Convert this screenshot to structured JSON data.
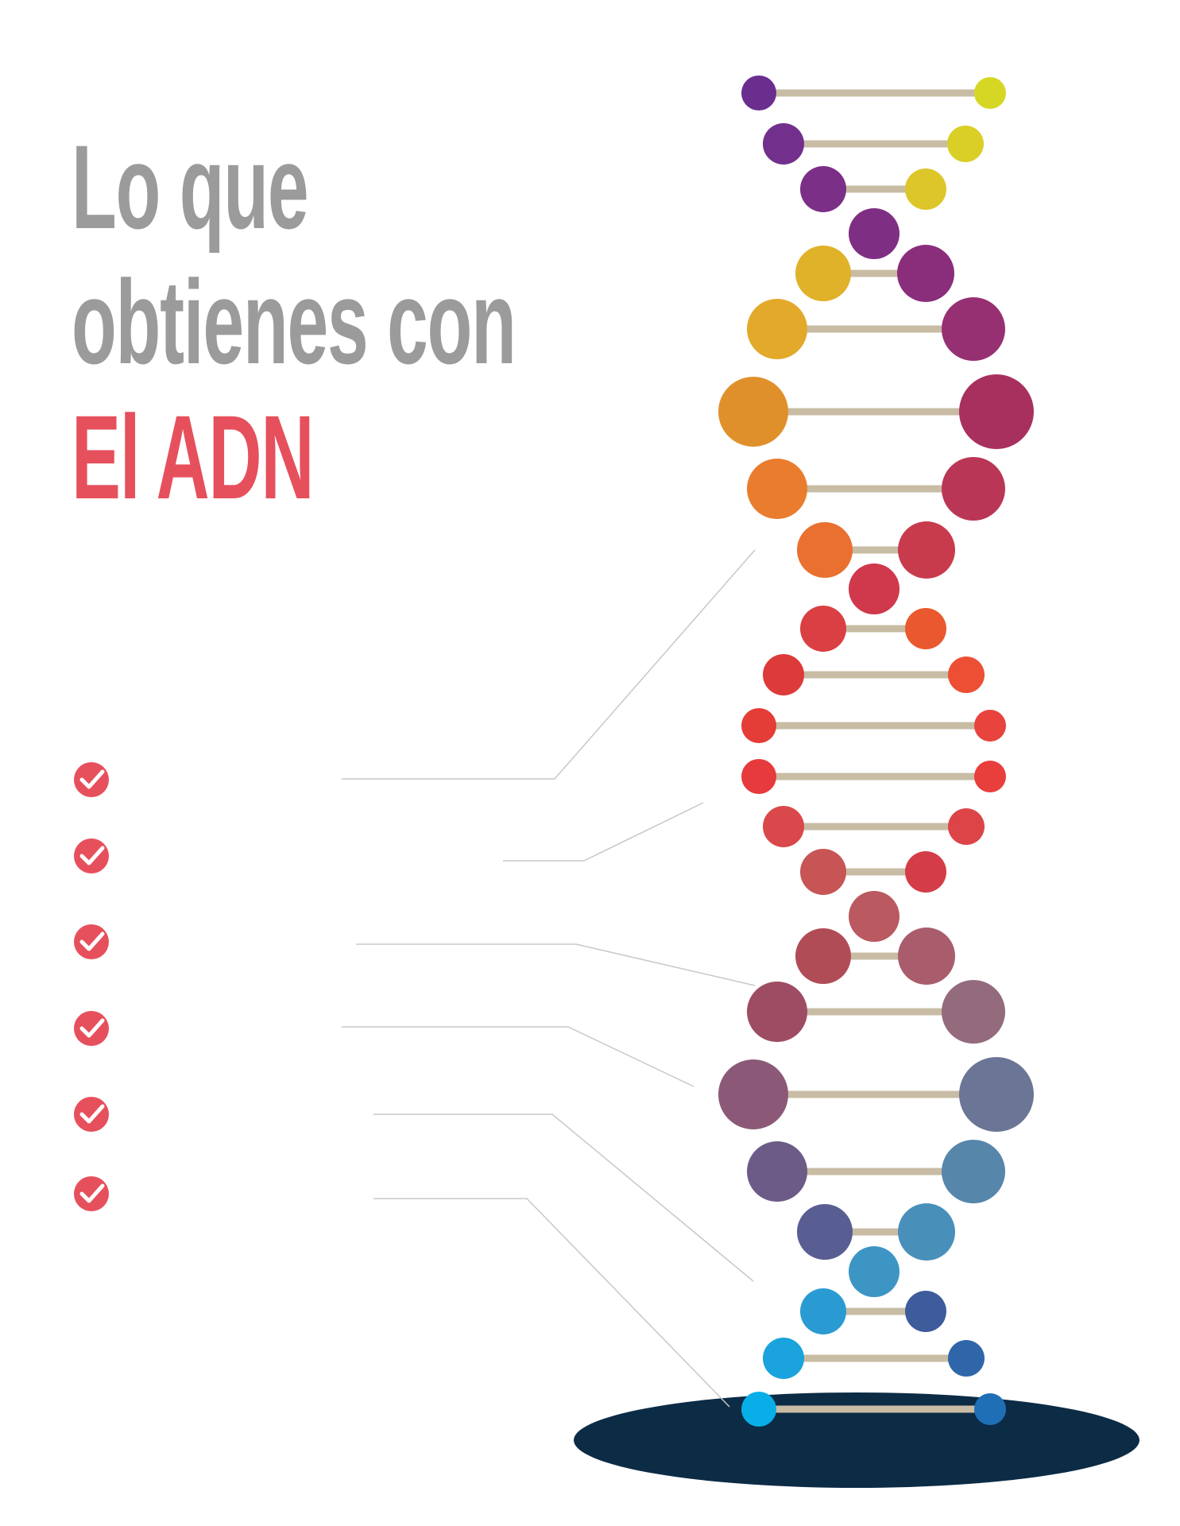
{
  "heading": {
    "line1": "Lo que",
    "line2": "obtienes con",
    "line3": "El ADN"
  },
  "colors": {
    "heading_gray": "#9b9b9b",
    "heading_accent": "#e6505c",
    "check_badge": "#e6505c",
    "rung": "#c8bca4",
    "base_shadow": "#0c2b45",
    "leader_line": "#c8c8c8"
  },
  "checklist": {
    "count": 6,
    "icon": "check-circle-icon"
  }
}
